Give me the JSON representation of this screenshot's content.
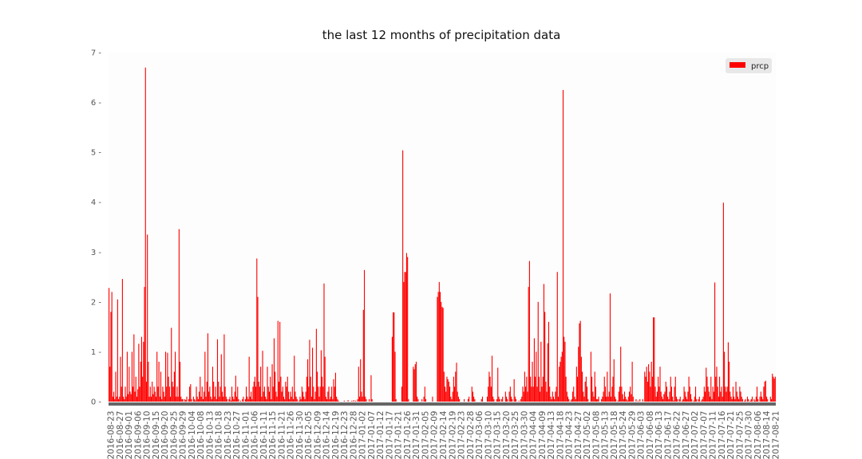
{
  "chart_data": {
    "type": "bar",
    "title": "the last 12 months of precipitation data",
    "xlabel": "",
    "ylabel": "",
    "ylim": [
      0,
      7
    ],
    "yticks": [
      0,
      1,
      2,
      3,
      4,
      5,
      6,
      7
    ],
    "x_tick_labels": [
      "2016-08-23",
      "2016-08-27",
      "2016-09-01",
      "2016-09-06",
      "2016-09-10",
      "2016-09-15",
      "2016-09-20",
      "2016-09-25",
      "2016-09-29",
      "2016-10-04",
      "2016-10-08",
      "2016-10-13",
      "2016-10-18",
      "2016-10-23",
      "2016-10-27",
      "2016-11-01",
      "2016-11-06",
      "2016-11-11",
      "2016-11-15",
      "2016-11-21",
      "2016-11-26",
      "2016-11-30",
      "2016-12-05",
      "2016-12-09",
      "2016-12-14",
      "2016-12-19",
      "2016-12-23",
      "2016-12-28",
      "2017-01-02",
      "2017-01-07",
      "2017-01-12",
      "2017-01-17",
      "2017-01-21",
      "2017-01-26",
      "2017-01-31",
      "2017-02-05",
      "2017-02-09",
      "2017-02-14",
      "2017-02-19",
      "2017-02-23",
      "2017-02-28",
      "2017-03-06",
      "2017-03-10",
      "2017-03-15",
      "2017-03-20",
      "2017-03-25",
      "2017-03-30",
      "2017-04-04",
      "2017-04-09",
      "2017-04-13",
      "2017-04-18",
      "2017-04-23",
      "2017-04-27",
      "2017-05-02",
      "2017-05-08",
      "2017-05-13",
      "2017-05-18",
      "2017-05-24",
      "2017-05-29",
      "2017-06-03",
      "2017-06-08",
      "2017-06-13",
      "2017-06-17",
      "2017-06-22",
      "2017-06-27",
      "2017-07-02",
      "2017-07-07",
      "2017-07-11",
      "2017-07-16",
      "2017-07-21",
      "2017-07-25",
      "2017-07-30",
      "2017-08-06",
      "2017-08-14",
      "2017-08-21"
    ],
    "series": [
      {
        "name": "prcp",
        "color": "#ff0000",
        "values": [
          2.28,
          0.7,
          1.8,
          2.2,
          0.1,
          0.2,
          0.05,
          0.6,
          0.1,
          2.05,
          0.05,
          0.1,
          0.9,
          0.3,
          2.46,
          0.1,
          0.05,
          0.3,
          0.1,
          1.0,
          0.15,
          0.7,
          0.2,
          0.15,
          1.0,
          0.3,
          1.35,
          0.2,
          0.5,
          0.1,
          0.25,
          1.16,
          0.3,
          0.8,
          1.3,
          0.5,
          1.2,
          2.3,
          6.7,
          0.4,
          3.35,
          0.8,
          0.1,
          0.3,
          0.1,
          0.4,
          0.15,
          0.3,
          0.2,
          0.1,
          1.0,
          0.3,
          0.8,
          0.1,
          0.6,
          0.05,
          0.3,
          0.2,
          0.1,
          1.0,
          0.3,
          0.98,
          0.5,
          0.3,
          0.1,
          1.48,
          0.4,
          0.3,
          0.6,
          1.0,
          0.1,
          0.3,
          0.1,
          3.46,
          0.8,
          0.1,
          0.05,
          0.05,
          0.0,
          0.05,
          0.03,
          0.1,
          0.0,
          0.05,
          0.3,
          0.35,
          0.05,
          0.0,
          0.1,
          0.05,
          0.02,
          0.3,
          0.1,
          0.05,
          0.2,
          0.5,
          0.1,
          0.3,
          0.05,
          0.2,
          1.0,
          0.1,
          0.4,
          1.37,
          0.2,
          0.3,
          0.1,
          0.05,
          0.7,
          0.4,
          0.1,
          0.3,
          0.05,
          1.25,
          0.4,
          0.1,
          0.3,
          0.95,
          0.2,
          0.1,
          1.35,
          0.3,
          0.1,
          0.05,
          0.0,
          0.05,
          0.1,
          0.02,
          0.3,
          0.1,
          0.05,
          0.2,
          0.52,
          0.1,
          0.3,
          0.05,
          0.0,
          0.02,
          0.0,
          0.05,
          0.1,
          0.0,
          0.05,
          0.3,
          0.1,
          0.05,
          0.9,
          0.1,
          0.2,
          0.05,
          0.3,
          0.4,
          0.5,
          0.3,
          2.87,
          2.1,
          0.4,
          0.3,
          0.7,
          0.1,
          1.02,
          0.2,
          0.3,
          0.1,
          0.05,
          0.7,
          0.3,
          0.2,
          0.5,
          0.05,
          0.75,
          0.3,
          1.27,
          0.6,
          0.2,
          0.1,
          1.62,
          0.4,
          1.6,
          0.5,
          0.2,
          0.3,
          0.1,
          0.05,
          0.4,
          0.3,
          0.5,
          0.2,
          0.05,
          0.2,
          0.1,
          0.3,
          0.05,
          0.92,
          0.2,
          0.1,
          0.05,
          0.0,
          0.02,
          0.1,
          0.05,
          0.3,
          0.2,
          0.1,
          0.05,
          0.2,
          0.5,
          0.85,
          0.3,
          1.24,
          0.5,
          0.1,
          1.08,
          0.3,
          0.05,
          0.2,
          1.46,
          0.6,
          0.3,
          0.1,
          0.3,
          1.03,
          0.5,
          0.3,
          2.37,
          0.9,
          0.1,
          0.05,
          0.2,
          0.3,
          0.05,
          0.1,
          0.3,
          0.05,
          0.45,
          0.3,
          0.58,
          0.1,
          0.05,
          0.02,
          0.0,
          0.0,
          0.0,
          0.0,
          0.0,
          0.02,
          0.0,
          0.0,
          0.0,
          0.03,
          0.0,
          0.0,
          0.0,
          0.02,
          0.0,
          0.03,
          0.0,
          0.02,
          0.0,
          0.05,
          0.7,
          0.1,
          0.85,
          0.2,
          0.1,
          1.84,
          2.64,
          0.1,
          0.05,
          0.0,
          0.0,
          0.05,
          0.0,
          0.53,
          0.05,
          0.0,
          0.0,
          0.0,
          0.0,
          0.0,
          0.0,
          0.0,
          0.0,
          0.0,
          0.0,
          0.0,
          0.0,
          0.0,
          0.0,
          0.0,
          0.0,
          0.0,
          0.0,
          0.0,
          0.0,
          1.3,
          1.79,
          1.79,
          1.0,
          0.05,
          0.0,
          0.0,
          0.0,
          0.0,
          0.0,
          0.3,
          5.04,
          2.4,
          2.6,
          2.6,
          2.98,
          2.9,
          0.05,
          0.0,
          0.0,
          0.0,
          0.0,
          0.7,
          0.65,
          0.75,
          0.8,
          0.1,
          0.05,
          0.0,
          0.0,
          0.0,
          0.05,
          0.0,
          0.1,
          0.3,
          0.05,
          0.0,
          0.0,
          0.0,
          0.0,
          0.0,
          0.0,
          0.1,
          0.0,
          0.0,
          0.0,
          0.0,
          2.1,
          2.2,
          2.4,
          2.2,
          2.0,
          1.9,
          1.88,
          0.6,
          0.3,
          0.2,
          0.5,
          0.45,
          0.4,
          0.3,
          0.1,
          0.05,
          0.2,
          0.5,
          0.3,
          0.6,
          0.78,
          0.2,
          0.1,
          0.05,
          0.0,
          0.0,
          0.0,
          0.0,
          0.05,
          0.0,
          0.0,
          0.0,
          0.05,
          0.1,
          0.0,
          0.0,
          0.3,
          0.2,
          0.1,
          0.05,
          0.0,
          0.0,
          0.0,
          0.0,
          0.0,
          0.0,
          0.05,
          0.1,
          0.0,
          0.0,
          0.0,
          0.0,
          0.1,
          0.3,
          0.6,
          0.5,
          0.3,
          0.92,
          0.1,
          0.05,
          0.0,
          0.0,
          0.05,
          0.68,
          0.1,
          0.05,
          0.0,
          0.05,
          0.1,
          0.0,
          0.0,
          0.2,
          0.1,
          0.05,
          0.0,
          0.2,
          0.3,
          0.1,
          0.05,
          0.0,
          0.45,
          0.1,
          0.05,
          0.0,
          0.0,
          0.02,
          0.0,
          0.05,
          0.1,
          0.3,
          0.2,
          0.6,
          0.3,
          0.5,
          0.2,
          2.3,
          2.82,
          0.5,
          0.3,
          0.8,
          0.3,
          1.27,
          0.5,
          1.0,
          0.3,
          2.0,
          0.5,
          0.2,
          1.2,
          0.3,
          0.5,
          2.36,
          1.8,
          0.4,
          0.2,
          1.17,
          1.6,
          0.3,
          0.1,
          0.05,
          0.2,
          0.1,
          0.05,
          0.2,
          0.3,
          2.6,
          0.1,
          0.7,
          0.8,
          0.9,
          1.0,
          6.25,
          1.3,
          1.2,
          0.5,
          0.2,
          0.1,
          0.05,
          0.0,
          0.02,
          0.05,
          0.2,
          0.3,
          0.1,
          0.05,
          0.7,
          0.5,
          1.1,
          1.57,
          1.62,
          0.9,
          0.6,
          0.2,
          0.1,
          0.4,
          0.5,
          0.3,
          0.05,
          0.0,
          0.0,
          1.0,
          0.5,
          0.2,
          0.1,
          0.6,
          0.3,
          0.05,
          0.05,
          0.1,
          0.0,
          0.0,
          0.05,
          0.1,
          0.2,
          0.5,
          0.3,
          0.1,
          0.6,
          0.1,
          0.2,
          2.17,
          0.1,
          0.3,
          0.5,
          0.85,
          0.1,
          0.05,
          0.0,
          0.02,
          0.2,
          0.3,
          1.1,
          0.3,
          0.15,
          0.05,
          0.2,
          0.1,
          0.05,
          0.02,
          0.1,
          0.2,
          0.3,
          0.15,
          0.8,
          0.1,
          0.0,
          0.0,
          0.05,
          0.0,
          0.02,
          0.0,
          0.05,
          0.0,
          0.0,
          0.05,
          0.0,
          0.6,
          0.5,
          0.7,
          0.4,
          0.75,
          0.6,
          0.3,
          0.8,
          0.5,
          1.69,
          1.69,
          0.3,
          0.1,
          0.2,
          0.5,
          0.3,
          0.7,
          0.2,
          0.1,
          0.05,
          0.15,
          0.2,
          0.4,
          0.3,
          0.1,
          0.05,
          0.2,
          0.5,
          0.3,
          0.1,
          0.02,
          0.3,
          0.5,
          0.1,
          0.05,
          0.0,
          0.05,
          0.1,
          0.0,
          0.02,
          0.05,
          0.3,
          0.2,
          0.1,
          0.05,
          0.2,
          0.5,
          0.3,
          0.15,
          0.05,
          0.0,
          0.02,
          0.1,
          0.3,
          0.05,
          0.0,
          0.05,
          0.1,
          0.0,
          0.02,
          0.05,
          0.1,
          0.3,
          0.2,
          0.68,
          0.5,
          0.3,
          0.2,
          0.1,
          0.5,
          0.05,
          0.3,
          0.2,
          2.39,
          0.5,
          0.7,
          0.3,
          0.1,
          0.5,
          0.2,
          0.3,
          0.1,
          3.99,
          1.0,
          0.3,
          0.2,
          0.3,
          1.19,
          0.8,
          0.2,
          0.1,
          0.05,
          0.3,
          0.1,
          0.05,
          0.4,
          0.2,
          0.1,
          0.05,
          0.3,
          0.2,
          0.1,
          0.05,
          0.0,
          0.02,
          0.05,
          0.0,
          0.1,
          0.05,
          0.0,
          0.02,
          0.05,
          0.1,
          0.0,
          0.05,
          0.02,
          0.1,
          0.3,
          0.05,
          0.0,
          0.1,
          0.2,
          0.1,
          0.05,
          0.3,
          0.4,
          0.42,
          0.1,
          0.05,
          0.0,
          0.0,
          0.1,
          0.05,
          0.56,
          0.5,
          0.46,
          0.5
        ]
      }
    ],
    "legend": {
      "entries": [
        "prcp"
      ],
      "position": "upper-right"
    },
    "grid": false
  }
}
